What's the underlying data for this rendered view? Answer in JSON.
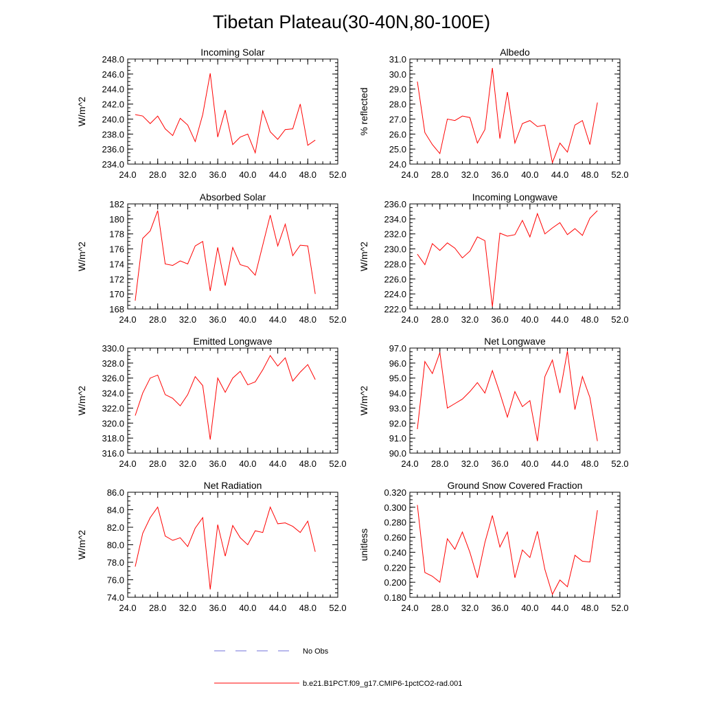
{
  "figure": {
    "title": "Tibetan Plateau(30-40N,80-100E)"
  },
  "colors": {
    "model_line": "#ff0000",
    "obs_line": "#6f6fd8",
    "axes": "#000000"
  },
  "legend": {
    "entries": [
      {
        "label": "No Obs",
        "style": "dashed",
        "color": "#6f6fd8"
      },
      {
        "label": "b.e21.B1PCT.f09_g17.CMIP6-1pctCO2-rad.001",
        "style": "solid",
        "color": "#ff0000"
      }
    ]
  },
  "chart_data": [
    {
      "type": "line",
      "title": "Incoming Solar",
      "ylabel": "W/m^2",
      "xlim": [
        24,
        52
      ],
      "ylim": [
        234,
        248
      ],
      "xticks": [
        24,
        28,
        32,
        36,
        40,
        44,
        48,
        52
      ],
      "xtick_labels": [
        "24.0",
        "28.0",
        "32.0",
        "36.0",
        "40.0",
        "44.0",
        "48.0",
        "52.0"
      ],
      "yticks": [
        234,
        236,
        238,
        240,
        242,
        244,
        246,
        248
      ],
      "ytick_labels": [
        "234.0",
        "236.0",
        "238.0",
        "240.0",
        "242.0",
        "244.0",
        "246.0",
        "248.0"
      ],
      "x": [
        25,
        26,
        27,
        28,
        29,
        30,
        31,
        32,
        33,
        34,
        35,
        36,
        37,
        38,
        39,
        40,
        41,
        42,
        43,
        44,
        45,
        46,
        47,
        48,
        49
      ],
      "series": [
        {
          "name": "b.e21.B1PCT.f09_g17.CMIP6-1pctCO2-rad.001",
          "values": [
            240.6,
            240.4,
            239.4,
            240.4,
            238.7,
            237.8,
            240.1,
            239.2,
            237.0,
            240.6,
            246.1,
            237.6,
            241.2,
            236.6,
            237.6,
            238.0,
            235.5,
            241.1,
            238.3,
            237.3,
            238.6,
            238.7,
            242.0,
            236.5,
            237.2
          ]
        }
      ]
    },
    {
      "type": "line",
      "title": "Albedo",
      "ylabel": "% reflected",
      "xlim": [
        24,
        52
      ],
      "ylim": [
        24,
        31
      ],
      "xticks": [
        24,
        28,
        32,
        36,
        40,
        44,
        48,
        52
      ],
      "xtick_labels": [
        "24.0",
        "28.0",
        "32.0",
        "36.0",
        "40.0",
        "44.0",
        "48.0",
        "52.0"
      ],
      "yticks": [
        24,
        25,
        26,
        27,
        28,
        29,
        30,
        31
      ],
      "ytick_labels": [
        "24.0",
        "25.0",
        "26.0",
        "27.0",
        "28.0",
        "29.0",
        "30.0",
        "31.0"
      ],
      "x": [
        25,
        26,
        27,
        28,
        29,
        30,
        31,
        32,
        33,
        34,
        35,
        36,
        37,
        38,
        39,
        40,
        41,
        42,
        43,
        44,
        45,
        46,
        47,
        48,
        49
      ],
      "series": [
        {
          "name": "b.e21.B1PCT.f09_g17.CMIP6-1pctCO2-rad.001",
          "values": [
            29.5,
            26.1,
            25.3,
            24.7,
            27.0,
            26.9,
            27.2,
            27.1,
            25.4,
            26.3,
            30.4,
            25.7,
            28.8,
            25.4,
            26.7,
            26.9,
            26.5,
            26.6,
            24.1,
            25.4,
            24.8,
            26.6,
            26.9,
            25.3,
            28.1
          ]
        }
      ]
    },
    {
      "type": "line",
      "title": "Absorbed Solar",
      "ylabel": "W/m^2",
      "xlim": [
        24,
        52
      ],
      "ylim": [
        168,
        182
      ],
      "xticks": [
        24,
        28,
        32,
        36,
        40,
        44,
        48,
        52
      ],
      "xtick_labels": [
        "24.0",
        "28.0",
        "32.0",
        "36.0",
        "40.0",
        "44.0",
        "48.0",
        "52.0"
      ],
      "yticks": [
        168,
        170,
        172,
        174,
        176,
        178,
        180,
        182
      ],
      "ytick_labels": [
        "168",
        "170",
        "172",
        "174",
        "176",
        "178",
        "180",
        "182"
      ],
      "x": [
        25,
        26,
        27,
        28,
        29,
        30,
        31,
        32,
        33,
        34,
        35,
        36,
        37,
        38,
        39,
        40,
        41,
        42,
        43,
        44,
        45,
        46,
        47,
        48,
        49
      ],
      "series": [
        {
          "name": "b.e21.B1PCT.f09_g17.CMIP6-1pctCO2-rad.001",
          "values": [
            169.1,
            177.4,
            178.4,
            181.1,
            174.0,
            173.8,
            174.4,
            174.0,
            176.4,
            177.0,
            170.4,
            176.2,
            171.1,
            176.2,
            173.9,
            173.6,
            172.5,
            176.5,
            180.5,
            176.4,
            179.3,
            175.1,
            176.5,
            176.4,
            170.0
          ]
        }
      ]
    },
    {
      "type": "line",
      "title": "Incoming Longwave",
      "ylabel": "W/m^2",
      "xlim": [
        24,
        52
      ],
      "ylim": [
        222,
        236
      ],
      "xticks": [
        24,
        28,
        32,
        36,
        40,
        44,
        48,
        52
      ],
      "xtick_labels": [
        "24.0",
        "28.0",
        "32.0",
        "36.0",
        "40.0",
        "44.0",
        "48.0",
        "52.0"
      ],
      "yticks": [
        222,
        224,
        226,
        228,
        230,
        232,
        234,
        236
      ],
      "ytick_labels": [
        "222.0",
        "224.0",
        "226.0",
        "228.0",
        "230.0",
        "232.0",
        "234.0",
        "236.0"
      ],
      "x": [
        25,
        26,
        27,
        28,
        29,
        30,
        31,
        32,
        33,
        34,
        35,
        36,
        37,
        38,
        39,
        40,
        41,
        42,
        43,
        44,
        45,
        46,
        47,
        48,
        49
      ],
      "series": [
        {
          "name": "b.e21.B1PCT.f09_g17.CMIP6-1pctCO2-rad.001",
          "values": [
            229.3,
            227.9,
            230.7,
            229.8,
            230.8,
            230.1,
            228.8,
            229.7,
            231.6,
            231.1,
            222.3,
            232.1,
            231.7,
            231.9,
            233.8,
            231.6,
            234.7,
            232.0,
            232.8,
            233.5,
            231.9,
            232.7,
            231.8,
            234.1,
            235.1
          ]
        }
      ]
    },
    {
      "type": "line",
      "title": "Emitted Longwave",
      "ylabel": "W/m^2",
      "xlim": [
        24,
        52
      ],
      "ylim": [
        316,
        330
      ],
      "xticks": [
        24,
        28,
        32,
        36,
        40,
        44,
        48,
        52
      ],
      "xtick_labels": [
        "24.0",
        "28.0",
        "32.0",
        "36.0",
        "40.0",
        "44.0",
        "48.0",
        "52.0"
      ],
      "yticks": [
        316,
        318,
        320,
        322,
        324,
        326,
        328,
        330
      ],
      "ytick_labels": [
        "316.0",
        "318.0",
        "320.0",
        "322.0",
        "324.0",
        "326.0",
        "328.0",
        "330.0"
      ],
      "x": [
        25,
        26,
        27,
        28,
        29,
        30,
        31,
        32,
        33,
        34,
        35,
        36,
        37,
        38,
        39,
        40,
        41,
        42,
        43,
        44,
        45,
        46,
        47,
        48,
        49
      ],
      "series": [
        {
          "name": "b.e21.B1PCT.f09_g17.CMIP6-1pctCO2-rad.001",
          "values": [
            321.0,
            324.0,
            326.0,
            326.4,
            323.8,
            323.3,
            322.3,
            323.8,
            326.2,
            325.0,
            317.8,
            326.0,
            324.1,
            326.0,
            326.9,
            325.1,
            325.5,
            327.1,
            329.0,
            327.6,
            328.7,
            325.6,
            326.8,
            327.8,
            325.8
          ]
        }
      ]
    },
    {
      "type": "line",
      "title": "Net Longwave",
      "ylabel": "W/m^2",
      "xlim": [
        24,
        52
      ],
      "ylim": [
        90,
        97
      ],
      "xticks": [
        24,
        28,
        32,
        36,
        40,
        44,
        48,
        52
      ],
      "xtick_labels": [
        "24.0",
        "28.0",
        "32.0",
        "36.0",
        "40.0",
        "44.0",
        "48.0",
        "52.0"
      ],
      "yticks": [
        90,
        91,
        92,
        93,
        94,
        95,
        96,
        97
      ],
      "ytick_labels": [
        "90.0",
        "91.0",
        "92.0",
        "93.0",
        "94.0",
        "95.0",
        "96.0",
        "97.0"
      ],
      "x": [
        25,
        26,
        27,
        28,
        29,
        30,
        31,
        32,
        33,
        34,
        35,
        36,
        37,
        38,
        39,
        40,
        41,
        42,
        43,
        44,
        45,
        46,
        47,
        48,
        49
      ],
      "series": [
        {
          "name": "b.e21.B1PCT.f09_g17.CMIP6-1pctCO2-rad.001",
          "values": [
            91.6,
            96.1,
            95.3,
            96.7,
            93.0,
            93.3,
            93.6,
            94.1,
            94.7,
            94.0,
            95.5,
            94.0,
            92.4,
            94.1,
            93.1,
            93.5,
            90.8,
            95.1,
            96.2,
            94.0,
            96.8,
            92.9,
            95.1,
            93.7,
            90.8
          ]
        }
      ]
    },
    {
      "type": "line",
      "title": "Net Radiation",
      "ylabel": "W/m^2",
      "xlim": [
        24,
        52
      ],
      "ylim": [
        74,
        86
      ],
      "xticks": [
        24,
        28,
        32,
        36,
        40,
        44,
        48,
        52
      ],
      "xtick_labels": [
        "24.0",
        "28.0",
        "32.0",
        "36.0",
        "40.0",
        "44.0",
        "48.0",
        "52.0"
      ],
      "yticks": [
        74,
        76,
        78,
        80,
        82,
        84,
        86
      ],
      "ytick_labels": [
        "74.0",
        "76.0",
        "78.0",
        "80.0",
        "82.0",
        "84.0",
        "86.0"
      ],
      "x": [
        25,
        26,
        27,
        28,
        29,
        30,
        31,
        32,
        33,
        34,
        35,
        36,
        37,
        38,
        39,
        40,
        41,
        42,
        43,
        44,
        45,
        46,
        47,
        48,
        49
      ],
      "series": [
        {
          "name": "b.e21.B1PCT.f09_g17.CMIP6-1pctCO2-rad.001",
          "values": [
            77.5,
            81.3,
            83.1,
            84.3,
            81.0,
            80.5,
            80.8,
            79.8,
            81.9,
            83.1,
            74.9,
            82.3,
            78.7,
            82.2,
            80.8,
            80.0,
            81.6,
            81.4,
            84.3,
            82.4,
            82.5,
            82.1,
            81.4,
            82.7,
            79.2
          ]
        }
      ]
    },
    {
      "type": "line",
      "title": "Ground Snow Covered Fraction",
      "ylabel": "unitless",
      "xlim": [
        24,
        52
      ],
      "ylim": [
        0.18,
        0.32
      ],
      "xticks": [
        24,
        28,
        32,
        36,
        40,
        44,
        48,
        52
      ],
      "xtick_labels": [
        "24.0",
        "28.0",
        "32.0",
        "36.0",
        "40.0",
        "44.0",
        "48.0",
        "52.0"
      ],
      "yticks": [
        0.18,
        0.2,
        0.22,
        0.24,
        0.26,
        0.28,
        0.3,
        0.32
      ],
      "ytick_labels": [
        "0.180",
        "0.200",
        "0.220",
        "0.240",
        "0.260",
        "0.280",
        "0.300",
        "0.320"
      ],
      "x": [
        25,
        26,
        27,
        28,
        29,
        30,
        31,
        32,
        33,
        34,
        35,
        36,
        37,
        38,
        39,
        40,
        41,
        42,
        43,
        44,
        45,
        46,
        47,
        48,
        49
      ],
      "series": [
        {
          "name": "b.e21.B1PCT.f09_g17.CMIP6-1pctCO2-rad.001",
          "values": [
            0.303,
            0.213,
            0.208,
            0.2,
            0.258,
            0.244,
            0.267,
            0.24,
            0.206,
            0.253,
            0.289,
            0.247,
            0.267,
            0.206,
            0.243,
            0.233,
            0.268,
            0.217,
            0.184,
            0.203,
            0.194,
            0.236,
            0.228,
            0.227,
            0.296
          ]
        }
      ]
    }
  ]
}
